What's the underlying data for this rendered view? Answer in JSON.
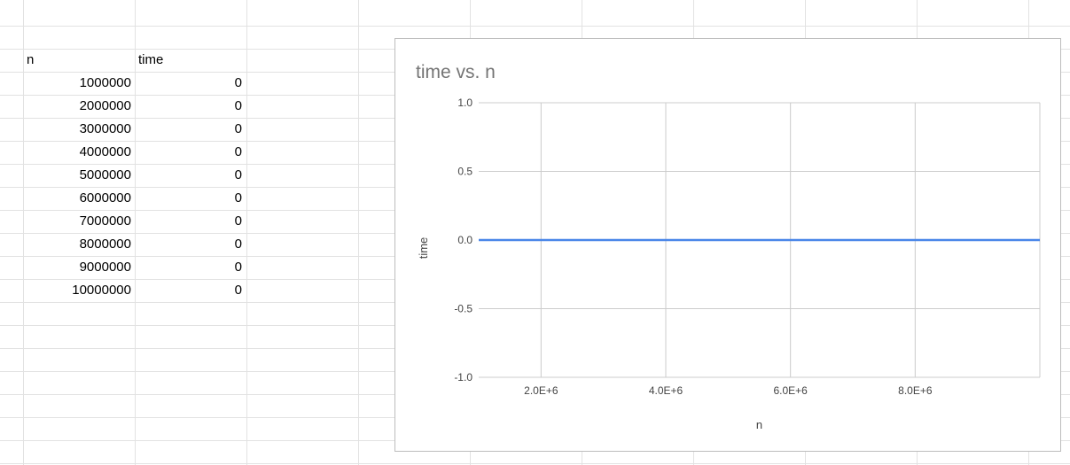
{
  "sheet": {
    "headers": [
      "n",
      "time"
    ],
    "rows": [
      [
        "1000000",
        "0"
      ],
      [
        "2000000",
        "0"
      ],
      [
        "3000000",
        "0"
      ],
      [
        "4000000",
        "0"
      ],
      [
        "5000000",
        "0"
      ],
      [
        "6000000",
        "0"
      ],
      [
        "7000000",
        "0"
      ],
      [
        "8000000",
        "0"
      ],
      [
        "9000000",
        "0"
      ],
      [
        "10000000",
        "0"
      ]
    ]
  },
  "colors": {
    "gridline": "#e2e2e2",
    "series": "#4a86e8",
    "title": "#757575",
    "axis_text": "#444444",
    "chart_grid": "#cccccc"
  },
  "chart_data": {
    "type": "line",
    "title": "time vs. n",
    "xlabel": "n",
    "ylabel": "time",
    "x": [
      1000000,
      2000000,
      3000000,
      4000000,
      5000000,
      6000000,
      7000000,
      8000000,
      9000000,
      10000000
    ],
    "series": [
      {
        "values": [
          0,
          0,
          0,
          0,
          0,
          0,
          0,
          0,
          0,
          0
        ]
      }
    ],
    "xlim": [
      1000000,
      10000000
    ],
    "ylim": [
      -1.0,
      1.0
    ],
    "xticks": [
      2000000,
      4000000,
      6000000,
      8000000
    ],
    "xtick_labels": [
      "2.0E+6",
      "4.0E+6",
      "6.0E+6",
      "8.0E+6"
    ],
    "yticks": [
      1.0,
      0.5,
      0.0,
      -0.5,
      -1.0
    ],
    "ytick_labels": [
      "1.0",
      "0.5",
      "0.0",
      "-0.5",
      "-1.0"
    ],
    "grid": true,
    "legend": "none"
  }
}
